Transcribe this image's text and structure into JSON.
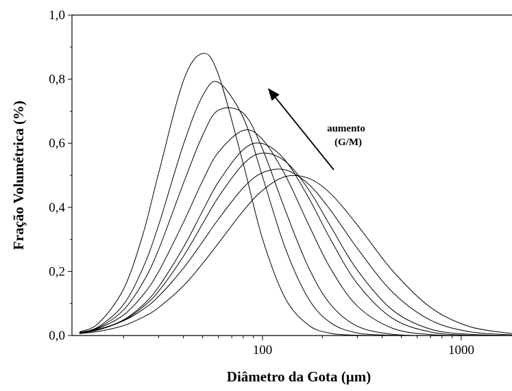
{
  "chart_data": {
    "type": "line",
    "xlabel": "Diâmetro da Gota (μm)",
    "ylabel": "Fração Volumétrica (%)",
    "annotations": [
      "aumento",
      "(G/M)"
    ],
    "log_x": true,
    "xlim": [
      11,
      1800
    ],
    "xticks": [
      100,
      1000
    ],
    "xminorticks": [
      20,
      30,
      40,
      50,
      60,
      70,
      80,
      90,
      200,
      300,
      400,
      500,
      600,
      700,
      800,
      900
    ],
    "ylim": [
      0,
      1
    ],
    "yticks": [
      {
        "value": 0,
        "label": "0,0"
      },
      {
        "value": 0.2,
        "label": "0,2"
      },
      {
        "value": 0.4,
        "label": "0,4"
      },
      {
        "value": 0.6,
        "label": "0,6"
      },
      {
        "value": 0.8,
        "label": "0,8"
      },
      {
        "value": 1,
        "label": "1,0"
      }
    ],
    "grid": false,
    "x": [
      12,
      15,
      20,
      25,
      30,
      40,
      50,
      60,
      80,
      100,
      130,
      170,
      220,
      300,
      450,
      700,
      1100,
      1800
    ],
    "series": [
      {
        "color": "#000000",
        "values": [
          0.011,
          0.039,
          0.145,
          0.315,
          0.506,
          0.795,
          0.88,
          0.814,
          0.536,
          0.302,
          0.117,
          0.033,
          0.007,
          0.001,
          0,
          0,
          0,
          0
        ]
      },
      {
        "color": "#000000",
        "values": [
          0.009,
          0.028,
          0.097,
          0.21,
          0.344,
          0.596,
          0.748,
          0.79,
          0.68,
          0.496,
          0.274,
          0.116,
          0.04,
          0.008,
          0.001,
          0,
          0,
          0
        ]
      },
      {
        "color": "#000000",
        "values": [
          0.009,
          0.025,
          0.08,
          0.165,
          0.268,
          0.475,
          0.625,
          0.703,
          0.694,
          0.582,
          0.392,
          0.214,
          0.097,
          0.029,
          0.004,
          0,
          0,
          0
        ]
      },
      {
        "color": "#000000",
        "values": [
          0.009,
          0.023,
          0.064,
          0.126,
          0.199,
          0.353,
          0.483,
          0.572,
          0.64,
          0.612,
          0.501,
          0.348,
          0.209,
          0.092,
          0.023,
          0.003,
          0,
          0
        ]
      },
      {
        "color": "#000000",
        "values": [
          0.007,
          0.018,
          0.049,
          0.095,
          0.152,
          0.275,
          0.389,
          0.479,
          0.58,
          0.599,
          0.547,
          0.432,
          0.3,
          0.162,
          0.054,
          0.011,
          0.001,
          0
        ]
      },
      {
        "color": "#000000",
        "values": [
          0.008,
          0.018,
          0.047,
          0.089,
          0.138,
          0.247,
          0.349,
          0.432,
          0.535,
          0.569,
          0.544,
          0.457,
          0.341,
          0.204,
          0.08,
          0.02,
          0.004,
          0
        ]
      },
      {
        "color": "#000000",
        "values": [
          0.009,
          0.02,
          0.046,
          0.081,
          0.122,
          0.21,
          0.293,
          0.363,
          0.461,
          0.508,
          0.517,
          0.473,
          0.391,
          0.272,
          0.136,
          0.048,
          0.012,
          0.002
        ]
      },
      {
        "color": "#000000",
        "values": [
          0.006,
          0.013,
          0.031,
          0.057,
          0.087,
          0.155,
          0.225,
          0.288,
          0.389,
          0.453,
          0.496,
          0.491,
          0.443,
          0.345,
          0.203,
          0.088,
          0.028,
          0.006
        ]
      }
    ]
  }
}
